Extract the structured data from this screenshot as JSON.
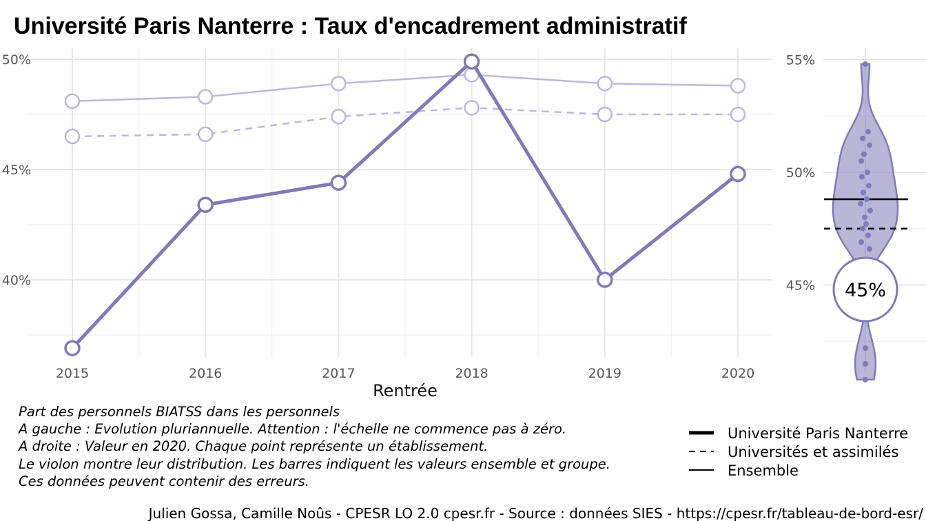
{
  "chart_data": [
    {
      "type": "line",
      "title": "Université Paris Nanterre  :  Taux d'encadrement administratif",
      "xlabel": "Rentrée",
      "ylabel": "",
      "x": [
        2015,
        2016,
        2017,
        2018,
        2019,
        2020
      ],
      "x_tick_labels": [
        "2015",
        "2016",
        "2017",
        "2018",
        "2019",
        "2020"
      ],
      "ylim": [
        36.5,
        50.5
      ],
      "y_ticks": [
        40,
        45,
        50
      ],
      "y_tick_labels": [
        "40%",
        "45%",
        "50%"
      ],
      "grid": true,
      "series": [
        {
          "name": "Université Paris Nanterre",
          "style": "thick-solid",
          "color": "#7f7ab8",
          "values": [
            36.9,
            43.4,
            44.4,
            49.9,
            40.0,
            44.8
          ]
        },
        {
          "name": "Ensemble",
          "style": "thin-solid",
          "color": "#bcb8d8",
          "values": [
            48.1,
            48.3,
            48.9,
            49.3,
            48.9,
            48.8
          ]
        },
        {
          "name": "Universités et assimilés",
          "style": "dashed",
          "color": "#bcb8d8",
          "values": [
            46.5,
            46.6,
            47.4,
            47.8,
            47.5,
            47.5
          ]
        }
      ]
    },
    {
      "type": "violin",
      "ylim": [
        41.5,
        55.5
      ],
      "y_ticks": [
        45,
        50,
        55
      ],
      "y_tick_labels": [
        "45%",
        "50%",
        "55%"
      ],
      "color": "#7f7ab8",
      "points": [
        54.8,
        51.8,
        51.5,
        51.2,
        50.8,
        50.5,
        50.0,
        49.8,
        49.4,
        49.1,
        48.8,
        48.6,
        48.3,
        48.0,
        47.7,
        47.5,
        47.2,
        46.9,
        46.6,
        42.2,
        41.5,
        40.8
      ],
      "ensemble_line": 48.8,
      "group_line": 47.5,
      "highlight_value": 44.8,
      "highlight_label": "45%"
    }
  ],
  "caption": {
    "lines": [
      "Part des personnels BIATSS dans les personnels",
      "A gauche : Evolution pluriannuelle. Attention : l'échelle ne commence pas à zéro.",
      "A droite : Valeur en 2020. Chaque point représente un établissement.",
      "Le violon montre leur distribution. Les barres indiquent les valeurs ensemble et groupe.",
      "Ces données peuvent contenir des erreurs."
    ]
  },
  "legend": {
    "placement": "bottom-right",
    "items": [
      {
        "label": "Université Paris Nanterre",
        "style": "thick"
      },
      {
        "label": "Universités et assimilés",
        "style": "dashed"
      },
      {
        "label": "Ensemble",
        "style": "thin"
      }
    ]
  },
  "source": "Julien Gossa, Camille Noûs - CPESR LO 2.0 cpesr.fr - Source : données SIES - https://cpesr.fr/tableau-de-bord-esr/"
}
